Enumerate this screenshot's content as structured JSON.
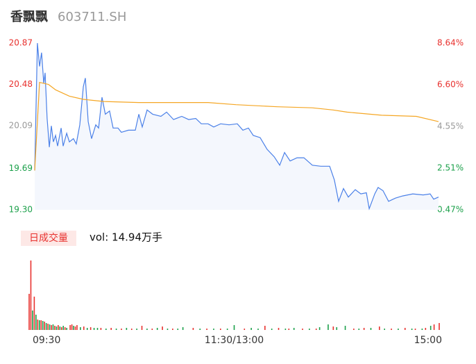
{
  "header": {
    "title": "香飘飘",
    "subtitle": "603711.SH"
  },
  "chart_data": [
    {
      "type": "line",
      "xlim": [
        0,
        240
      ],
      "ylim": [
        19.3,
        20.87
      ],
      "y2lim": [
        0.47,
        8.64
      ],
      "yticks": [
        20.87,
        20.48,
        20.09,
        19.69,
        {
          "value": 19.3,
          "label": "19.30"
        }
      ],
      "ytick_colors": [
        "#e8312e",
        "#e8312e",
        "#999999",
        "#1ba04a",
        "#1ba04a"
      ],
      "y2ticks": [
        {
          "value": 8.64,
          "label": "8.64%"
        },
        {
          "value": 6.6,
          "label": "6.60%"
        },
        {
          "value": 4.55,
          "label": "4.55%"
        },
        {
          "value": 2.51,
          "label": "2.51%"
        },
        {
          "value": 0.47,
          "label": "0.47%"
        }
      ],
      "y2tick_colors": [
        "#e8312e",
        "#e8312e",
        "#999999",
        "#1ba04a",
        "#1ba04a"
      ],
      "series": [
        {
          "color": "#4a80e8",
          "area": true,
          "x": [
            0,
            1.6,
            2.9,
            4.1,
            5.4,
            6.2,
            7.4,
            8.7,
            9.9,
            11.1,
            12.4,
            13.6,
            15.7,
            16.9,
            19,
            20.6,
            23,
            24.7,
            26.8,
            28.9,
            30.1,
            31.8,
            33.8,
            36.3,
            38,
            40,
            42,
            44.5,
            46.6,
            49.5,
            51.5,
            55.7,
            59.8,
            61.9,
            63.9,
            66.8,
            70.1,
            75,
            78.4,
            82.5,
            87.4,
            91.5,
            95.7,
            99,
            103,
            106.4,
            110.5,
            115.5,
            120.4,
            123.7,
            127,
            129.9,
            134,
            138.1,
            142.3,
            145.6,
            148.5,
            151.8,
            155.9,
            160,
            165,
            170,
            175.3,
            178.1,
            180.6,
            183.5,
            186.4,
            190.5,
            193.8,
            197.1,
            198.8,
            202.1,
            204.1,
            207,
            210.3,
            214.4,
            218.6,
            224.7,
            230.9,
            235,
            237.1,
            240
          ],
          "values": [
            19.67,
            20.87,
            20.65,
            20.78,
            20.49,
            20.59,
            20.16,
            19.89,
            20.09,
            19.94,
            20.0,
            19.9,
            20.07,
            19.9,
            20.02,
            19.94,
            19.97,
            19.92,
            20.1,
            20.46,
            20.54,
            20.13,
            19.97,
            20.1,
            20.07,
            20.36,
            20.2,
            20.23,
            20.07,
            20.07,
            20.03,
            20.05,
            20.05,
            20.2,
            20.08,
            20.24,
            20.2,
            20.18,
            20.22,
            20.15,
            20.18,
            20.15,
            20.16,
            20.11,
            20.11,
            20.08,
            20.11,
            20.1,
            20.11,
            20.05,
            20.07,
            20.0,
            19.98,
            19.87,
            19.8,
            19.72,
            19.84,
            19.76,
            19.79,
            19.79,
            19.72,
            19.71,
            19.71,
            19.58,
            19.38,
            19.5,
            19.42,
            19.49,
            19.45,
            19.46,
            19.31,
            19.45,
            19.51,
            19.48,
            19.38,
            19.41,
            19.43,
            19.45,
            19.44,
            19.45,
            19.4,
            19.42
          ]
        },
        {
          "color": "#f5a623",
          "x": [
            0,
            2.9,
            8.2,
            12.4,
            20.6,
            28.9,
            41.2,
            61.9,
            103.1,
            119.6,
            144.3,
            164.9,
            177.3,
            185.6,
            206.2,
            226.8,
            240
          ],
          "values": [
            19.67,
            20.5,
            20.48,
            20.43,
            20.37,
            20.34,
            20.32,
            20.31,
            20.31,
            20.29,
            20.27,
            20.26,
            20.24,
            20.22,
            20.19,
            20.18,
            20.13
          ]
        }
      ]
    },
    {
      "type": "bar",
      "volume_label": "日成交量",
      "summary": "vol: 14.94万手",
      "xlim": [
        0,
        240
      ],
      "ylim": [
        0,
        100
      ],
      "xticks": [
        {
          "value": 0,
          "label": "09:30"
        },
        {
          "value": 120,
          "label": "11:30/13:00"
        },
        {
          "value": 240,
          "label": "15:00"
        }
      ],
      "series": [
        {
          "color": "#e8312e",
          "x": [
            0,
            1,
            3,
            5,
            7,
            9,
            11,
            13,
            15,
            17,
            19,
            21,
            24,
            25,
            27,
            28,
            32,
            36,
            42,
            48,
            54,
            60,
            66,
            72,
            78,
            84,
            96,
            104,
            112,
            126,
            138,
            146,
            152,
            160,
            168,
            178,
            190,
            196,
            205,
            212,
            220,
            226,
            232,
            237,
            240
          ],
          "values": [
            52,
            100,
            48,
            15,
            14,
            12,
            9,
            7,
            6,
            7,
            4,
            4,
            7,
            8,
            5,
            7,
            5,
            4,
            3,
            3,
            2,
            2,
            6,
            2,
            5,
            2,
            3,
            2,
            2,
            2,
            6,
            3,
            2,
            2,
            2,
            5,
            2,
            3,
            5,
            2,
            3,
            2,
            3,
            8,
            10
          ]
        },
        {
          "color": "#1ba04a",
          "x": [
            2,
            4,
            6,
            8,
            10,
            12,
            14,
            16,
            18,
            20,
            22,
            26,
            30,
            34,
            38,
            40,
            45,
            51,
            57,
            63,
            69,
            75,
            81,
            87,
            90,
            100,
            108,
            116,
            120,
            130,
            134,
            142,
            150,
            155,
            164,
            170,
            175,
            180,
            185,
            193,
            200,
            208,
            216,
            224,
            230,
            235
          ],
          "values": [
            28,
            22,
            14,
            13,
            10,
            8,
            8,
            5,
            5,
            6,
            3,
            6,
            4,
            3,
            3,
            3,
            2,
            2,
            3,
            2,
            2,
            3,
            2,
            2,
            4,
            2,
            2,
            2,
            7,
            3,
            2,
            2,
            2,
            3,
            2,
            4,
            8,
            4,
            6,
            2,
            3,
            2,
            2,
            2,
            2,
            6
          ]
        }
      ]
    }
  ]
}
